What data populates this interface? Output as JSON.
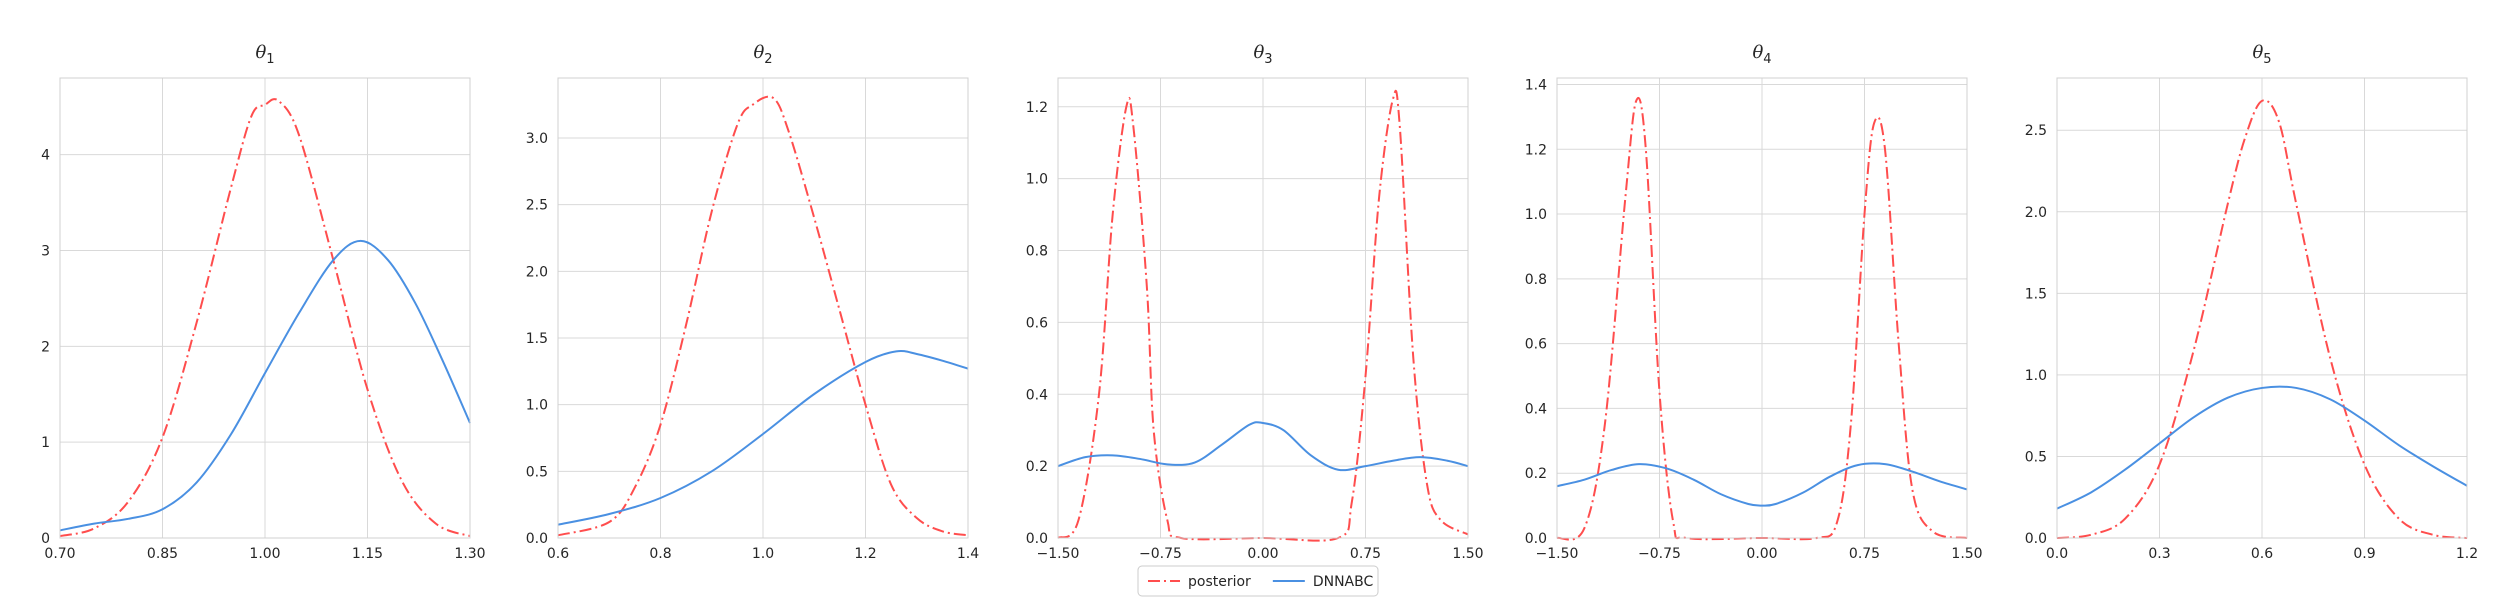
{
  "chart_data": [
    {
      "type": "line",
      "title": "θ",
      "title_sub": "1",
      "xlim": [
        0.7,
        1.3
      ],
      "ylim": [
        0,
        4.8
      ],
      "xticks": [
        0.7,
        0.85,
        1.0,
        1.15,
        1.3
      ],
      "xtick_labels": [
        "0.70",
        "0.85",
        "1.00",
        "1.15",
        "1.30"
      ],
      "yticks": [
        0,
        1,
        2,
        3,
        4
      ],
      "ytick_labels": [
        "0",
        "1",
        "2",
        "3",
        "4"
      ],
      "grid": true,
      "series": [
        {
          "name": "posterior",
          "color": "#ff4d4d",
          "dash": "dash-dot",
          "points": [
            [
              0.7,
              0.02
            ],
            [
              0.75,
              0.1
            ],
            [
              0.8,
              0.38
            ],
            [
              0.85,
              1.05
            ],
            [
              0.9,
              2.25
            ],
            [
              0.95,
              3.65
            ],
            [
              0.98,
              4.4
            ],
            [
              1.0,
              4.52
            ],
            [
              1.02,
              4.56
            ],
            [
              1.05,
              4.2
            ],
            [
              1.1,
              2.9
            ],
            [
              1.15,
              1.55
            ],
            [
              1.2,
              0.6
            ],
            [
              1.25,
              0.15
            ],
            [
              1.3,
              0.02
            ]
          ]
        },
        {
          "name": "DNNABC",
          "color": "#4a90e2",
          "dash": "solid",
          "points": [
            [
              0.7,
              0.08
            ],
            [
              0.75,
              0.15
            ],
            [
              0.8,
              0.2
            ],
            [
              0.85,
              0.3
            ],
            [
              0.9,
              0.58
            ],
            [
              0.95,
              1.08
            ],
            [
              1.0,
              1.72
            ],
            [
              1.05,
              2.35
            ],
            [
              1.1,
              2.9
            ],
            [
              1.14,
              3.1
            ],
            [
              1.18,
              2.9
            ],
            [
              1.22,
              2.45
            ],
            [
              1.26,
              1.85
            ],
            [
              1.3,
              1.2
            ]
          ]
        }
      ]
    },
    {
      "type": "line",
      "title": "θ",
      "title_sub": "2",
      "xlim": [
        0.6,
        1.4
      ],
      "ylim": [
        0,
        3.45
      ],
      "xticks": [
        0.6,
        0.8,
        1.0,
        1.2,
        1.4
      ],
      "xtick_labels": [
        "0.6",
        "0.8",
        "1.0",
        "1.2",
        "1.4"
      ],
      "yticks": [
        0,
        0.5,
        1.0,
        1.5,
        2.0,
        2.5,
        3.0
      ],
      "ytick_labels": [
        "0.0",
        "0.5",
        "1.0",
        "1.5",
        "2.0",
        "2.5",
        "3.0"
      ],
      "grid": true,
      "series": [
        {
          "name": "posterior",
          "color": "#ff4d4d",
          "dash": "dash-dot",
          "points": [
            [
              0.6,
              0.02
            ],
            [
              0.7,
              0.12
            ],
            [
              0.75,
              0.38
            ],
            [
              0.8,
              0.85
            ],
            [
              0.85,
              1.6
            ],
            [
              0.9,
              2.45
            ],
            [
              0.95,
              3.1
            ],
            [
              0.98,
              3.25
            ],
            [
              1.02,
              3.3
            ],
            [
              1.05,
              3.05
            ],
            [
              1.1,
              2.4
            ],
            [
              1.15,
              1.7
            ],
            [
              1.2,
              1.0
            ],
            [
              1.25,
              0.4
            ],
            [
              1.3,
              0.15
            ],
            [
              1.35,
              0.05
            ],
            [
              1.4,
              0.02
            ]
          ]
        },
        {
          "name": "DNNABC",
          "color": "#4a90e2",
          "dash": "solid",
          "points": [
            [
              0.6,
              0.1
            ],
            [
              0.7,
              0.18
            ],
            [
              0.8,
              0.3
            ],
            [
              0.9,
              0.5
            ],
            [
              1.0,
              0.78
            ],
            [
              1.1,
              1.08
            ],
            [
              1.2,
              1.32
            ],
            [
              1.26,
              1.4
            ],
            [
              1.3,
              1.38
            ],
            [
              1.35,
              1.33
            ],
            [
              1.4,
              1.27
            ]
          ]
        }
      ]
    },
    {
      "type": "line",
      "title": "θ",
      "title_sub": "3",
      "xlim": [
        -1.5,
        1.5
      ],
      "ylim": [
        0,
        1.28
      ],
      "xticks": [
        -1.5,
        -0.75,
        0,
        0.75,
        1.5
      ],
      "xtick_labels": [
        "−1.50",
        "−0.75",
        "0.00",
        "0.75",
        "1.50"
      ],
      "yticks": [
        0,
        0.2,
        0.4,
        0.6,
        0.8,
        1.0,
        1.2
      ],
      "ytick_labels": [
        "0.0",
        "0.2",
        "0.4",
        "0.6",
        "0.8",
        "1.0",
        "1.2"
      ],
      "grid": true,
      "series": [
        {
          "name": "posterior",
          "color": "#ff4d4d",
          "dash": "dash-dot",
          "points": [
            [
              -1.5,
              0.0
            ],
            [
              -1.35,
              0.05
            ],
            [
              -1.2,
              0.4
            ],
            [
              -1.1,
              0.9
            ],
            [
              -1.0,
              1.2
            ],
            [
              -0.95,
              1.15
            ],
            [
              -0.85,
              0.7
            ],
            [
              -0.8,
              0.3
            ],
            [
              -0.7,
              0.05
            ],
            [
              -0.6,
              0.0
            ],
            [
              0.0,
              0.0
            ],
            [
              0.55,
              0.0
            ],
            [
              0.65,
              0.1
            ],
            [
              0.75,
              0.45
            ],
            [
              0.85,
              0.95
            ],
            [
              0.95,
              1.22
            ],
            [
              1.0,
              1.15
            ],
            [
              1.1,
              0.5
            ],
            [
              1.2,
              0.15
            ],
            [
              1.3,
              0.05
            ],
            [
              1.5,
              0.01
            ]
          ]
        },
        {
          "name": "DNNABC",
          "color": "#4a90e2",
          "dash": "solid",
          "points": [
            [
              -1.5,
              0.2
            ],
            [
              -1.3,
              0.225
            ],
            [
              -1.1,
              0.23
            ],
            [
              -0.9,
              0.22
            ],
            [
              -0.7,
              0.205
            ],
            [
              -0.5,
              0.21
            ],
            [
              -0.3,
              0.26
            ],
            [
              -0.1,
              0.315
            ],
            [
              0.0,
              0.32
            ],
            [
              0.15,
              0.3
            ],
            [
              0.35,
              0.23
            ],
            [
              0.55,
              0.19
            ],
            [
              0.75,
              0.2
            ],
            [
              0.95,
              0.215
            ],
            [
              1.15,
              0.225
            ],
            [
              1.35,
              0.215
            ],
            [
              1.5,
              0.2
            ]
          ]
        }
      ]
    },
    {
      "type": "line",
      "title": "θ",
      "title_sub": "4",
      "xlim": [
        -1.5,
        1.5
      ],
      "ylim": [
        0,
        1.42
      ],
      "xticks": [
        -1.5,
        -0.75,
        0,
        0.75,
        1.5
      ],
      "xtick_labels": [
        "−1.50",
        "−0.75",
        "0.00",
        "0.75",
        "1.50"
      ],
      "yticks": [
        0,
        0.2,
        0.4,
        0.6,
        0.8,
        1.0,
        1.2,
        1.4
      ],
      "ytick_labels": [
        "0.0",
        "0.2",
        "0.4",
        "0.6",
        "0.8",
        "1.0",
        "1.2",
        "1.4"
      ],
      "grid": true,
      "series": [
        {
          "name": "posterior",
          "color": "#ff4d4d",
          "dash": "dash-dot",
          "points": [
            [
              -1.5,
              0.0
            ],
            [
              -1.3,
              0.03
            ],
            [
              -1.15,
              0.35
            ],
            [
              -1.0,
              1.05
            ],
            [
              -0.92,
              1.35
            ],
            [
              -0.85,
              1.2
            ],
            [
              -0.75,
              0.45
            ],
            [
              -0.65,
              0.05
            ],
            [
              -0.55,
              0.0
            ],
            [
              0.0,
              0.0
            ],
            [
              0.4,
              0.0
            ],
            [
              0.55,
              0.05
            ],
            [
              0.65,
              0.35
            ],
            [
              0.75,
              1.0
            ],
            [
              0.82,
              1.28
            ],
            [
              0.9,
              1.2
            ],
            [
              1.0,
              0.6
            ],
            [
              1.1,
              0.15
            ],
            [
              1.25,
              0.02
            ],
            [
              1.5,
              0.0
            ]
          ]
        },
        {
          "name": "DNNABC",
          "color": "#4a90e2",
          "dash": "solid",
          "points": [
            [
              -1.5,
              0.16
            ],
            [
              -1.3,
              0.18
            ],
            [
              -1.1,
              0.21
            ],
            [
              -0.9,
              0.228
            ],
            [
              -0.7,
              0.215
            ],
            [
              -0.5,
              0.18
            ],
            [
              -0.3,
              0.135
            ],
            [
              -0.1,
              0.105
            ],
            [
              0.0,
              0.1
            ],
            [
              0.1,
              0.105
            ],
            [
              0.3,
              0.14
            ],
            [
              0.5,
              0.19
            ],
            [
              0.7,
              0.225
            ],
            [
              0.9,
              0.228
            ],
            [
              1.1,
              0.205
            ],
            [
              1.3,
              0.175
            ],
            [
              1.5,
              0.15
            ]
          ]
        }
      ]
    },
    {
      "type": "line",
      "title": "θ",
      "title_sub": "5",
      "xlim": [
        0.0,
        1.2
      ],
      "ylim": [
        0,
        2.82
      ],
      "xticks": [
        0.0,
        0.3,
        0.6,
        0.9,
        1.2
      ],
      "xtick_labels": [
        "0.0",
        "0.3",
        "0.6",
        "0.9",
        "1.2"
      ],
      "yticks": [
        0,
        0.5,
        1.0,
        1.5,
        2.0,
        2.5
      ],
      "ytick_labels": [
        "0.0",
        "0.5",
        "1.0",
        "1.5",
        "2.0",
        "2.5"
      ],
      "grid": true,
      "series": [
        {
          "name": "posterior",
          "color": "#ff4d4d",
          "dash": "dash-dot",
          "points": [
            [
              0.0,
              0.0
            ],
            [
              0.1,
              0.02
            ],
            [
              0.2,
              0.12
            ],
            [
              0.3,
              0.45
            ],
            [
              0.4,
              1.15
            ],
            [
              0.5,
              2.05
            ],
            [
              0.55,
              2.45
            ],
            [
              0.6,
              2.68
            ],
            [
              0.65,
              2.55
            ],
            [
              0.7,
              2.05
            ],
            [
              0.8,
              1.1
            ],
            [
              0.9,
              0.45
            ],
            [
              1.0,
              0.12
            ],
            [
              1.1,
              0.02
            ],
            [
              1.2,
              0.0
            ]
          ]
        },
        {
          "name": "DNNABC",
          "color": "#4a90e2",
          "dash": "solid",
          "points": [
            [
              0.0,
              0.18
            ],
            [
              0.1,
              0.28
            ],
            [
              0.2,
              0.42
            ],
            [
              0.3,
              0.58
            ],
            [
              0.4,
              0.74
            ],
            [
              0.5,
              0.86
            ],
            [
              0.6,
              0.92
            ],
            [
              0.7,
              0.92
            ],
            [
              0.8,
              0.85
            ],
            [
              0.9,
              0.72
            ],
            [
              1.0,
              0.57
            ],
            [
              1.1,
              0.44
            ],
            [
              1.2,
              0.32
            ]
          ]
        }
      ]
    }
  ],
  "legend": {
    "placement": "bottom-center",
    "items": [
      {
        "label": "posterior",
        "color": "#ff4d4d",
        "dash": "dash-dot"
      },
      {
        "label": "DNNABC",
        "color": "#4a90e2",
        "dash": "solid"
      }
    ]
  }
}
